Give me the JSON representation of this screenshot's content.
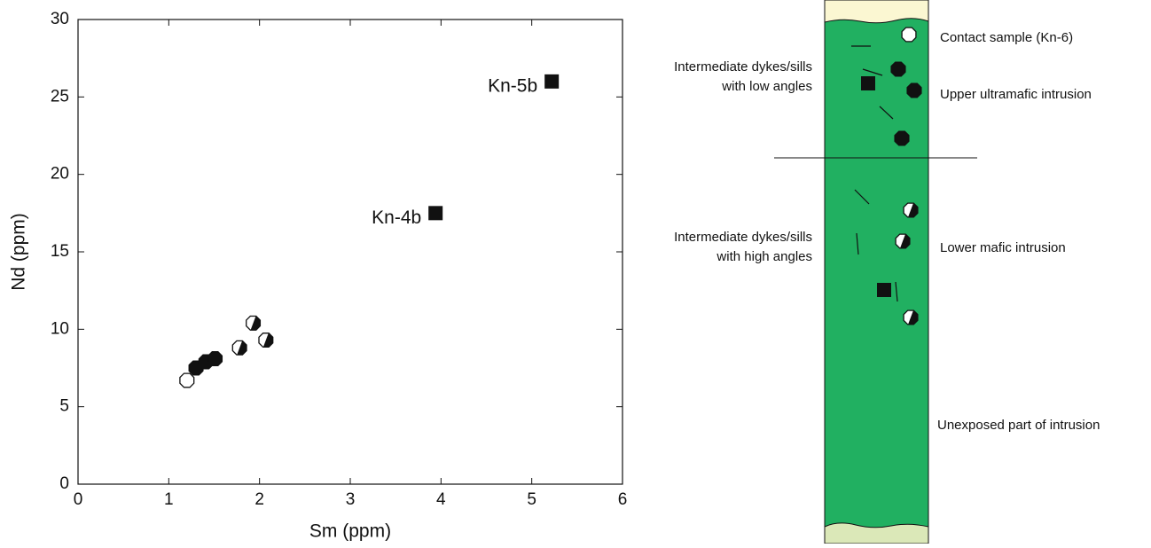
{
  "chart_data": {
    "type": "scatter",
    "x_label": "Sm (ppm)",
    "y_label": "Nd (ppm)",
    "xlim": [
      0,
      6
    ],
    "xticks": [
      0,
      1,
      2,
      3,
      4,
      5,
      6
    ],
    "ylim": [
      0,
      30
    ],
    "yticks": [
      0,
      5,
      10,
      15,
      20,
      25,
      30
    ],
    "series": [
      {
        "marker": "open-octagon",
        "color": "#ffffff",
        "x": [
          1.2
        ],
        "values": [
          6.7
        ]
      },
      {
        "marker": "filled-octagon",
        "color": "#111111",
        "x": [
          1.3,
          1.41,
          1.51
        ],
        "values": [
          7.5,
          7.9,
          8.1
        ]
      },
      {
        "marker": "half-octagon",
        "color": "#111111",
        "x": [
          1.78,
          1.93,
          2.07
        ],
        "values": [
          8.8,
          10.4,
          9.3
        ]
      },
      {
        "marker": "square",
        "color": "#111111",
        "x": [
          3.94,
          5.22
        ],
        "values": [
          17.5,
          26.0
        ],
        "labels": [
          "Kn-4b",
          "Kn-5b"
        ]
      }
    ]
  },
  "diagram": {
    "labels": [
      "Contact sample (Kn-6)",
      "Intermediate dykes/sills",
      "with low angles",
      "Upper ultramafic intrusion",
      "Intermediate dykes/sills",
      "with high angles",
      "Lower mafic intrusion",
      "Unexposed part of intrusion"
    ]
  }
}
